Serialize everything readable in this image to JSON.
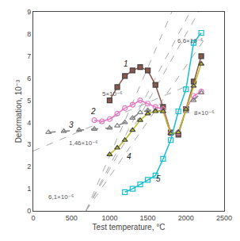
{
  "chart_data": {
    "type": "line",
    "xlabel": "Test temperature, °C",
    "ylabel": "Deformation, 10⁻³",
    "xlim": [
      0,
      2500
    ],
    "ylim": [
      0,
      9
    ],
    "xticks": [
      0,
      500,
      1000,
      1500,
      2000,
      2500
    ],
    "yticks": [
      0,
      1,
      2,
      3,
      4,
      5,
      6,
      7,
      8,
      9
    ],
    "grid": false,
    "series": [
      {
        "type": "reference",
        "line_style": "dashed",
        "color": "#aaaaaa",
        "x": [
          690,
          2053.64
        ],
        "values": [
          0,
          9
        ],
        "label": {
          "text": "6,6×10⁻⁶",
          "x": 1870,
          "y": 7.45
        }
      },
      {
        "type": "reference",
        "line_style": "dashed",
        "color": "#aaaaaa",
        "x": [
          690,
          1815
        ],
        "values": [
          0,
          9
        ],
        "label": {
          "text": "8×10⁻⁶",
          "x": 2090,
          "y": 4.2
        }
      },
      {
        "type": "reference",
        "line_style": "dashed",
        "color": "#aaaaaa",
        "x": [
          690,
          2240
        ],
        "values": [
          0,
          7.75
        ],
        "label": {
          "text": "5×10⁻⁶",
          "x": 880,
          "y": 5.05
        }
      },
      {
        "type": "reference",
        "line_style": "dashed",
        "color": "#aaaaaa",
        "x": [
          0,
          2240
        ],
        "values": [
          2.708,
          5.9784
        ],
        "label": {
          "text": "1,46×10⁻⁶",
          "x": 450,
          "y": 2.82
        }
      },
      {
        "type": "reference",
        "line_style": "dashed",
        "color": "#aaaaaa",
        "x": [
          690,
          2165.41
        ],
        "values": [
          0,
          9
        ],
        "label": {
          "text": "6,1×10⁻⁶",
          "x": 175,
          "y": 0.38
        }
      },
      {
        "type": "line",
        "marker": "square",
        "line_style": "solid",
        "x": [
          1000,
          1100,
          1200,
          1300,
          1400,
          1500,
          1600,
          1700,
          1800,
          1900,
          2000,
          2100,
          2200
        ],
        "values": [
          5.0,
          5.6,
          6.1,
          6.35,
          6.5,
          6.35,
          5.7,
          4.7,
          3.55,
          3.45,
          4.6,
          5.85,
          7.0
        ],
        "label": {
          "text": "1",
          "x": 1215,
          "y": 6.65
        }
      },
      {
        "type": "line",
        "marker": "circle-open",
        "line_style": "solid",
        "x": [
          800,
          900,
          1000,
          1100,
          1200,
          1300,
          1400,
          1500,
          1600,
          1700,
          1800,
          1900,
          2000,
          2100,
          2200
        ],
        "values": [
          4.1,
          4.05,
          4.15,
          4.4,
          4.65,
          4.8,
          5.0,
          4.85,
          4.7,
          4.6,
          3.5,
          3.55,
          4.6,
          5.2,
          5.4
        ],
        "label": {
          "text": "2",
          "x": 780,
          "y": 4.5
        }
      },
      {
        "type": "line",
        "marker": "triangle-up-open",
        "line_style": "dashed",
        "x": [
          200,
          400,
          600,
          800,
          1000,
          1100,
          1200,
          1300,
          1400,
          1500,
          1600,
          1700,
          1800,
          1900,
          2000,
          2100,
          2200
        ],
        "values": [
          3.55,
          3.6,
          3.65,
          3.7,
          3.75,
          3.85,
          4.0,
          4.2,
          4.45,
          4.55,
          4.55,
          4.5,
          3.5,
          3.55,
          4.5,
          5.0,
          5.35
        ],
        "label": {
          "text": "3",
          "x": 500,
          "y": 3.9
        }
      },
      {
        "type": "line",
        "marker": "triangle-up",
        "line_style": "solid",
        "x": [
          1000,
          1100,
          1200,
          1300,
          1400,
          1500,
          1600,
          1700,
          1800,
          1900,
          2000,
          2100,
          2200
        ],
        "values": [
          2.55,
          2.85,
          3.2,
          3.65,
          4.1,
          4.4,
          4.5,
          4.5,
          3.5,
          3.55,
          4.6,
          5.65,
          6.65
        ],
        "label": {
          "text": "4",
          "x": 1250,
          "y": 2.45
        }
      },
      {
        "type": "line",
        "marker": "square-open",
        "line_style": "solid",
        "x": [
          1200,
          1300,
          1400,
          1500,
          1600,
          1700,
          1800,
          1900,
          2000,
          2100,
          2200
        ],
        "values": [
          0.85,
          1.0,
          1.2,
          1.4,
          1.6,
          2.35,
          3.2,
          4.5,
          5.5,
          7.6,
          8.05
        ],
        "label": {
          "text": "5",
          "x": 1640,
          "y": 1.45
        }
      }
    ]
  }
}
